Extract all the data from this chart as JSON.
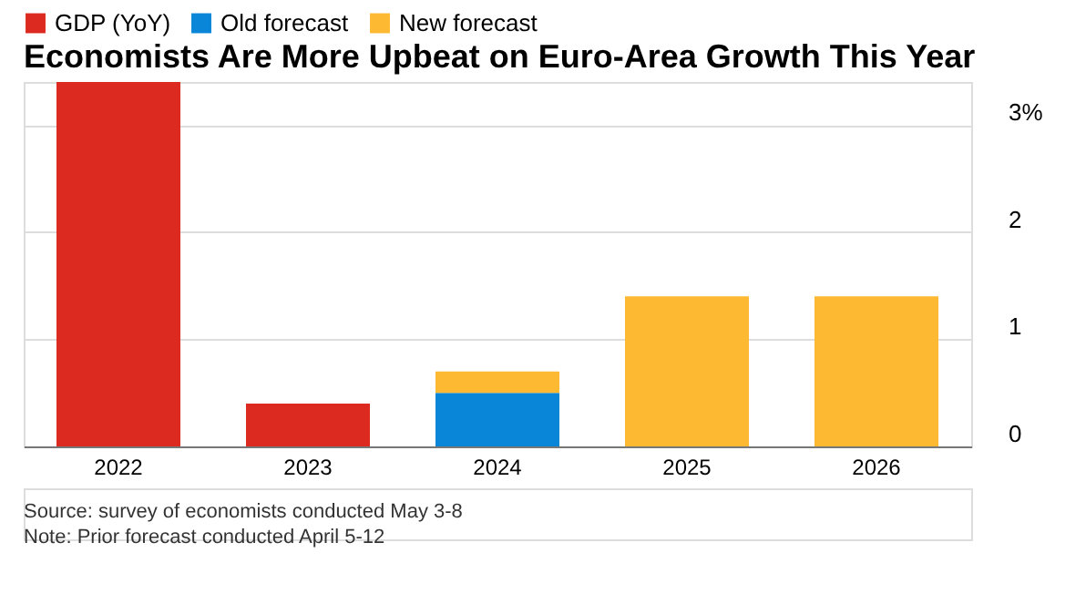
{
  "chart_data": {
    "type": "bar",
    "title": "Economists Are More Upbeat on Euro-Area Growth This Year",
    "categories": [
      "2022",
      "2023",
      "2024",
      "2025",
      "2026"
    ],
    "series": [
      {
        "name": "GDP (YoY)",
        "color": "#dd2a20",
        "values": [
          3.4,
          0.4,
          null,
          null,
          null
        ]
      },
      {
        "name": "Old forecast",
        "color": "#0a86d8",
        "values": [
          null,
          null,
          0.5,
          null,
          null
        ]
      },
      {
        "name": "New forecast",
        "color": "#fdb932",
        "values": [
          null,
          null,
          0.2,
          1.4,
          1.4
        ]
      }
    ],
    "stacked": true,
    "ylim": [
      0,
      3.4
    ],
    "yticks": [
      0,
      1,
      2,
      {
        "value": 3,
        "label": "3%"
      }
    ],
    "grid": "y",
    "legend": "top left",
    "annotations": [
      "Source: survey of economists conducted May 3-8",
      "Note: Prior forecast conducted April 5-12"
    ]
  }
}
